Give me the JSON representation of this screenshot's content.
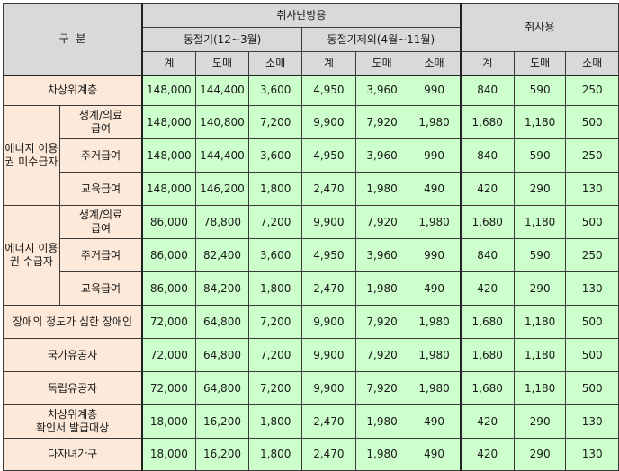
{
  "header": {
    "category": "구  분",
    "heating_group": "취사난방용",
    "winter": "동절기(12~3월)",
    "non_winter": "동절기제외(4월~11월)",
    "cooking": "취사용",
    "sub": [
      "계",
      "도매",
      "소매",
      "계",
      "도매",
      "소매",
      "계",
      "도매",
      "소매"
    ]
  },
  "groups": {
    "non_recipient": "에너지\n이용권\n미수급자",
    "recipient": "에너지\n이용권\n수급자"
  },
  "rows": [
    {
      "label": "차상위계층",
      "values": [
        "148,000",
        "144,400",
        "3,600",
        "4,950",
        "3,960",
        "990",
        "840",
        "590",
        "250"
      ]
    },
    {
      "label": "생계/의료\n급여",
      "values": [
        "148,000",
        "140,800",
        "7,200",
        "9,900",
        "7,920",
        "1,980",
        "1,680",
        "1,180",
        "500"
      ]
    },
    {
      "label": "주거급여",
      "values": [
        "148,000",
        "144,400",
        "3,600",
        "4,950",
        "3,960",
        "990",
        "840",
        "590",
        "250"
      ]
    },
    {
      "label": "교육급여",
      "values": [
        "148,000",
        "146,200",
        "1,800",
        "2,470",
        "1,980",
        "490",
        "420",
        "290",
        "130"
      ]
    },
    {
      "label": "생계/의료\n급여",
      "values": [
        "86,000",
        "78,800",
        "7,200",
        "9,900",
        "7,920",
        "1,980",
        "1,680",
        "1,180",
        "500"
      ]
    },
    {
      "label": "주거급여",
      "values": [
        "86,000",
        "82,400",
        "3,600",
        "4,950",
        "3,960",
        "990",
        "840",
        "590",
        "250"
      ]
    },
    {
      "label": "교육급여",
      "values": [
        "86,000",
        "84,200",
        "1,800",
        "2,470",
        "1,980",
        "490",
        "420",
        "290",
        "130"
      ]
    },
    {
      "label": "장애의 정도가 심한 장애인",
      "values": [
        "72,000",
        "64,800",
        "7,200",
        "9,900",
        "7,920",
        "1,980",
        "1,680",
        "1,180",
        "500"
      ]
    },
    {
      "label": "국가유공자",
      "values": [
        "72,000",
        "64,800",
        "7,200",
        "9,900",
        "7,920",
        "1,980",
        "1,680",
        "1,180",
        "500"
      ]
    },
    {
      "label": "독립유공자",
      "values": [
        "72,000",
        "64,800",
        "7,200",
        "9,900",
        "7,920",
        "1,980",
        "1,680",
        "1,180",
        "500"
      ]
    },
    {
      "label": "차상위계층\n확인서 발급대상",
      "values": [
        "18,000",
        "16,200",
        "1,800",
        "2,470",
        "1,980",
        "490",
        "420",
        "290",
        "130"
      ]
    },
    {
      "label": "다자녀가구",
      "values": [
        "18,000",
        "16,200",
        "1,800",
        "2,470",
        "1,980",
        "490",
        "420",
        "290",
        "130"
      ]
    }
  ],
  "colors": {
    "header_bg": "#d9d9d9",
    "label_bg": "#fde9d9",
    "value_bg": "#ccffcc",
    "border": "#3a3a3a"
  }
}
